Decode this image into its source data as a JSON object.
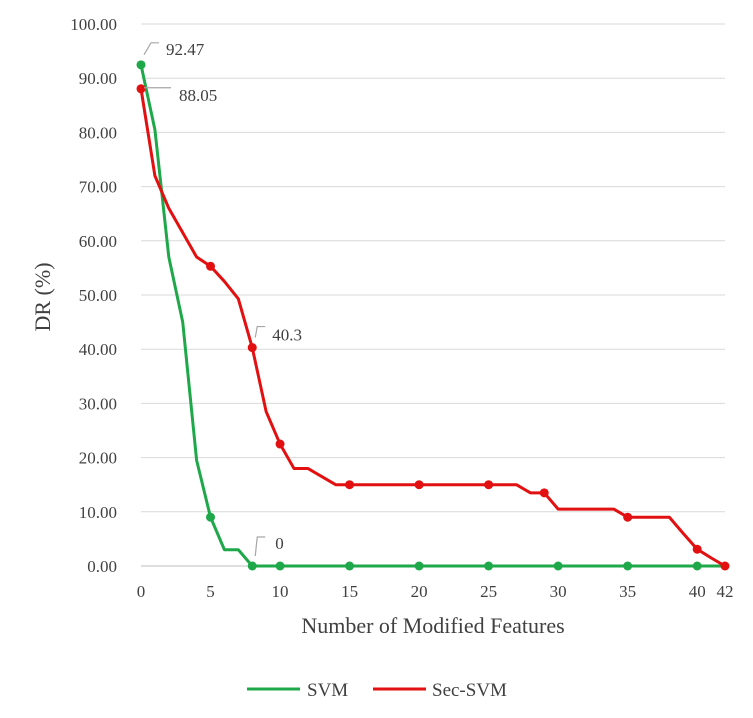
{
  "chart_data": {
    "type": "line",
    "xlabel": "Number of Modified Features",
    "ylabel": "DR (%)",
    "ylim": [
      0,
      100
    ],
    "yticks": [
      "0.00",
      "10.00",
      "20.00",
      "30.00",
      "40.00",
      "50.00",
      "60.00",
      "70.00",
      "80.00",
      "90.00",
      "100.00"
    ],
    "xlim": [
      0,
      42
    ],
    "xticks": [
      0,
      5,
      10,
      15,
      20,
      25,
      30,
      35,
      40,
      42
    ],
    "grid": "horizontal",
    "legend_position": "bottom",
    "series": [
      {
        "name": "SVM",
        "color": "#1fa84a",
        "x": [
          0,
          1,
          2,
          3,
          4,
          5,
          6,
          7,
          8,
          9,
          10,
          15,
          20,
          25,
          30,
          35,
          40,
          42
        ],
        "y": [
          92.47,
          80.5,
          57,
          45,
          19.5,
          9,
          3,
          3,
          0,
          0,
          0,
          0,
          0,
          0,
          0,
          0,
          0,
          0
        ],
        "markers_x": [
          0,
          5,
          8,
          10,
          15,
          20,
          25,
          30,
          35,
          40
        ]
      },
      {
        "name": "Sec-SVM",
        "color": "#e21010",
        "x": [
          0,
          1,
          2,
          3,
          4,
          5,
          6,
          7,
          8,
          9,
          10,
          11,
          12,
          13,
          14,
          15,
          20,
          25,
          26,
          27,
          28,
          29,
          30,
          31,
          32,
          33,
          34,
          35,
          36,
          37,
          38,
          39,
          40,
          41,
          42
        ],
        "y": [
          88.05,
          72,
          66,
          61.5,
          57,
          55.3,
          52.5,
          49.3,
          40.3,
          28.5,
          22.5,
          18,
          18,
          16.5,
          15,
          15,
          15,
          15,
          15,
          15,
          13.5,
          13.5,
          10.5,
          10.5,
          10.5,
          10.5,
          10.5,
          9,
          9,
          9,
          9,
          6,
          3.1,
          1.5,
          0
        ],
        "markers_x": [
          0,
          5,
          8,
          10,
          15,
          20,
          25,
          29,
          35,
          40,
          42
        ]
      }
    ],
    "annotations": [
      {
        "series": 0,
        "x": 0,
        "y": 92.47,
        "text": "92.47"
      },
      {
        "series": 1,
        "x": 0,
        "y": 88.05,
        "text": "88.05"
      },
      {
        "series": 1,
        "x": 8,
        "y": 40.3,
        "text": "40.3"
      },
      {
        "series": 0,
        "x": 8,
        "y": 0,
        "text": "0"
      }
    ]
  }
}
